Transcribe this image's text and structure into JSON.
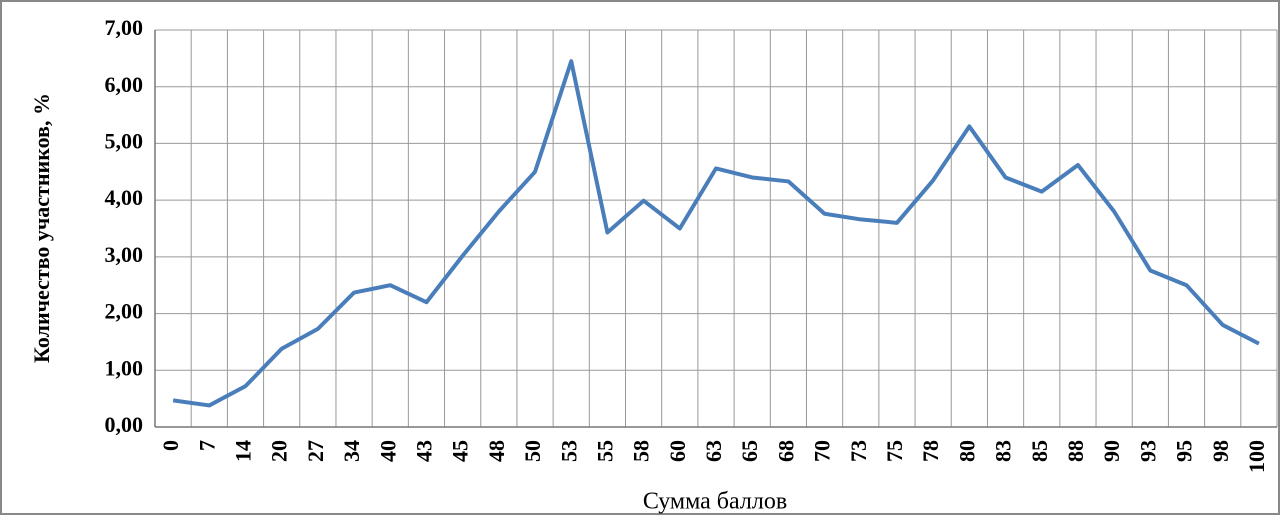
{
  "chart_data": {
    "type": "line",
    "x_label": "Сумма баллов",
    "y_label": "Количество участников, %",
    "categories": [
      "0",
      "7",
      "14",
      "20",
      "27",
      "34",
      "40",
      "43",
      "45",
      "48",
      "50",
      "53",
      "55",
      "58",
      "60",
      "63",
      "65",
      "68",
      "70",
      "73",
      "75",
      "78",
      "80",
      "83",
      "85",
      "88",
      "90",
      "93",
      "95",
      "98",
      "100"
    ],
    "series": [
      {
        "color": "#4a7ebb",
        "values": [
          0.47,
          0.38,
          0.72,
          1.38,
          1.73,
          2.37,
          2.5,
          2.2,
          3.02,
          3.8,
          4.5,
          6.45,
          3.43,
          3.99,
          3.5,
          4.56,
          4.4,
          4.33,
          3.76,
          3.66,
          3.6,
          4.35,
          5.3,
          4.4,
          4.15,
          4.62,
          3.8,
          2.76,
          2.5,
          1.8,
          1.47
        ]
      }
    ],
    "ylim": [
      0,
      7
    ],
    "yticks": [
      {
        "value": 0,
        "label": "0,00"
      },
      {
        "value": 1,
        "label": "1,00"
      },
      {
        "value": 2,
        "label": "2,00"
      },
      {
        "value": 3,
        "label": "3,00"
      },
      {
        "value": 4,
        "label": "4,00"
      },
      {
        "value": 5,
        "label": "5,00"
      },
      {
        "value": 6,
        "label": "6,00"
      },
      {
        "value": 7,
        "label": "7,00"
      }
    ],
    "grid": true
  }
}
